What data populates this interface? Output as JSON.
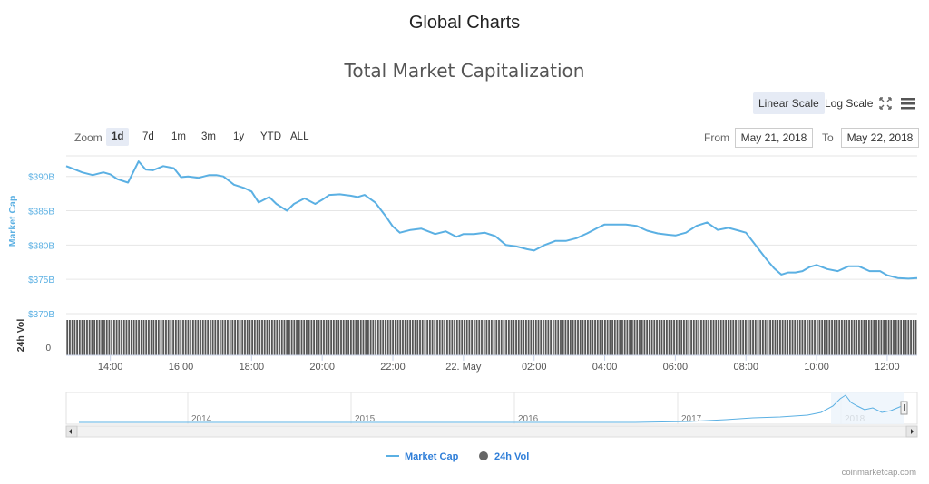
{
  "header": {
    "page_title": "Global Charts",
    "chart_title": "Total Market Capitalization"
  },
  "toolbar": {
    "linear_scale": "Linear Scale",
    "log_scale": "Log Scale",
    "fullscreen_icon": "fullscreen-icon",
    "menu_icon": "hamburger-menu-icon"
  },
  "zoom": {
    "label": "Zoom",
    "buttons": [
      "1d",
      "7d",
      "1m",
      "3m",
      "1y",
      "YTD",
      "ALL"
    ],
    "selected": "1d"
  },
  "range": {
    "from_label": "From",
    "from_value": "May 21, 2018",
    "to_label": "To",
    "to_value": "May 22, 2018"
  },
  "colors": {
    "accent": "#5bb0e3",
    "volume": "#555555",
    "active_bg": "#e6ebf5"
  },
  "chart_data": {
    "type": "line",
    "title": "Total Market Capitalization",
    "ylabel": "Market Cap",
    "y_unit": "$B",
    "y_tick_labels": [
      "$390B",
      "$385B",
      "$380B",
      "$375B",
      "$370B"
    ],
    "y_ticks": [
      390,
      385,
      380,
      375,
      370
    ],
    "ylim": [
      370,
      393
    ],
    "x_tick_labels": [
      "14:00",
      "16:00",
      "18:00",
      "20:00",
      "22:00",
      "22. May",
      "02:00",
      "04:00",
      "06:00",
      "08:00",
      "10:00",
      "12:00"
    ],
    "x_hours": [
      14,
      16,
      18,
      20,
      22,
      24,
      26,
      28,
      30,
      32,
      34,
      36
    ],
    "xlim": [
      12.75,
      36.85
    ],
    "series": [
      {
        "name": "Market Cap",
        "x_hours": [
          12.75,
          13.0,
          13.2,
          13.5,
          13.8,
          14.0,
          14.2,
          14.5,
          14.8,
          15.0,
          15.2,
          15.5,
          15.8,
          16.0,
          16.2,
          16.5,
          16.8,
          17.0,
          17.2,
          17.5,
          17.8,
          18.0,
          18.2,
          18.5,
          18.7,
          19.0,
          19.2,
          19.5,
          19.8,
          20.0,
          20.2,
          20.5,
          20.8,
          21.0,
          21.2,
          21.5,
          21.8,
          22.0,
          22.2,
          22.5,
          22.8,
          23.0,
          23.2,
          23.5,
          23.8,
          24.0,
          24.3,
          24.6,
          24.9,
          25.2,
          25.5,
          25.8,
          26.0,
          26.3,
          26.6,
          26.9,
          27.2,
          27.5,
          27.8,
          28.0,
          28.3,
          28.6,
          28.9,
          29.2,
          29.5,
          29.8,
          30.0,
          30.3,
          30.6,
          30.9,
          31.2,
          31.5,
          31.8,
          32.0,
          32.3,
          32.6,
          32.8,
          33.0,
          33.2,
          33.4,
          33.6,
          33.8,
          34.0,
          34.3,
          34.6,
          34.9,
          35.2,
          35.5,
          35.8,
          36.0,
          36.3,
          36.6,
          36.85
        ],
        "values": [
          391.5,
          391.0,
          390.6,
          390.2,
          390.6,
          390.3,
          389.6,
          389.1,
          392.2,
          391.0,
          390.9,
          391.5,
          391.2,
          389.9,
          390.0,
          389.8,
          390.2,
          390.2,
          390.0,
          388.8,
          388.3,
          387.8,
          386.2,
          387.0,
          386.0,
          385.0,
          386.0,
          386.8,
          386.0,
          386.6,
          387.3,
          387.4,
          387.2,
          387.0,
          387.3,
          386.2,
          384.2,
          382.7,
          381.8,
          382.2,
          382.4,
          382.0,
          381.6,
          382.0,
          381.2,
          381.6,
          381.6,
          381.8,
          381.3,
          380.0,
          379.8,
          379.4,
          379.2,
          380.0,
          380.6,
          380.6,
          381.0,
          381.7,
          382.5,
          383.0,
          383.0,
          383.0,
          382.8,
          382.1,
          381.7,
          381.5,
          381.4,
          381.8,
          382.8,
          383.3,
          382.2,
          382.5,
          382.1,
          381.8,
          379.8,
          377.8,
          376.6,
          375.7,
          376.0,
          376.0,
          376.2,
          376.8,
          377.1,
          376.5,
          376.2,
          376.9,
          376.9,
          376.2,
          376.2,
          375.6,
          375.2,
          375.1,
          375.2
        ]
      },
      {
        "name": "24h Vol",
        "type": "column",
        "relative_height": [
          1,
          1,
          1,
          1,
          1,
          1,
          1,
          1,
          1,
          1,
          1,
          1,
          1,
          1,
          1,
          1,
          1,
          1,
          1,
          1,
          1,
          1,
          1,
          1,
          1,
          1,
          1,
          1,
          1,
          1,
          1,
          1,
          1,
          1,
          1,
          1,
          1,
          1,
          1,
          1,
          1,
          1,
          1,
          1,
          1,
          1,
          1,
          1,
          1,
          1,
          1,
          1,
          1,
          1,
          1,
          1,
          1,
          1,
          1,
          1,
          1,
          1,
          1,
          1,
          1,
          1,
          1,
          1,
          1,
          1,
          1,
          1,
          1,
          1,
          1,
          1,
          1,
          1,
          1,
          1,
          1,
          1,
          1,
          1,
          1,
          1,
          1,
          1,
          1,
          1,
          1,
          1,
          1,
          1,
          1,
          1,
          1,
          1,
          1,
          1,
          1,
          1,
          1,
          1,
          1,
          1,
          1,
          1,
          1,
          1,
          1,
          1,
          1,
          1,
          1,
          1,
          1,
          1,
          1,
          1,
          1,
          1,
          1,
          1,
          1,
          1,
          1,
          1,
          1,
          1,
          1,
          1,
          1,
          1,
          1,
          1,
          1,
          1,
          1,
          1,
          1,
          1,
          1,
          1,
          1,
          1,
          1,
          1,
          1,
          1,
          1,
          1,
          1,
          1,
          1,
          1,
          1,
          1,
          1,
          1,
          1,
          1,
          1,
          1,
          1,
          1,
          1,
          1,
          1,
          1,
          1,
          1,
          1,
          1,
          1,
          1,
          1,
          1,
          1,
          1,
          1,
          1,
          1,
          1,
          1,
          1,
          1,
          1,
          1,
          1,
          1,
          1,
          1,
          1,
          1,
          1,
          1,
          1,
          1,
          1,
          1,
          1,
          1,
          1,
          1,
          1,
          1,
          1,
          1,
          1,
          1,
          1,
          1,
          1,
          1,
          1,
          1,
          1,
          1,
          1,
          1,
          1,
          1,
          1,
          1,
          1,
          1,
          1,
          1,
          1,
          1,
          1,
          1,
          1,
          1,
          1,
          1,
          1,
          1,
          1,
          1,
          1,
          1,
          1,
          1,
          1,
          1,
          1,
          1,
          1,
          1,
          1,
          1,
          1,
          1,
          1,
          1,
          1,
          1,
          1,
          1,
          1,
          1,
          1,
          1,
          1,
          1,
          1,
          1,
          1,
          1,
          1,
          1,
          1,
          1,
          1,
          1,
          1,
          1,
          1,
          1,
          1,
          1,
          1,
          1,
          1,
          1,
          1,
          1,
          1,
          1,
          1,
          1,
          1,
          1,
          1,
          1,
          1,
          1,
          1,
          1,
          1,
          1,
          1,
          1,
          1,
          1,
          1,
          1,
          1,
          1,
          1,
          1,
          1,
          1,
          1,
          1,
          1,
          1,
          1,
          1,
          1,
          1,
          1,
          1,
          1,
          1,
          1,
          1,
          1,
          1,
          1,
          1,
          1,
          1,
          1,
          1,
          1,
          1,
          1,
          1,
          1,
          1,
          1,
          1
        ]
      }
    ],
    "volume_axis": {
      "label": "24h Vol",
      "tick_labels": [
        "0"
      ]
    },
    "navigator": {
      "year_labels": [
        "2014",
        "2015",
        "2016",
        "2017",
        "2018"
      ]
    },
    "legend": {
      "placement": "bottom-center",
      "items": [
        "Market Cap",
        "24h Vol"
      ]
    }
  },
  "footer": {
    "credit": "coinmarketcap.com"
  }
}
